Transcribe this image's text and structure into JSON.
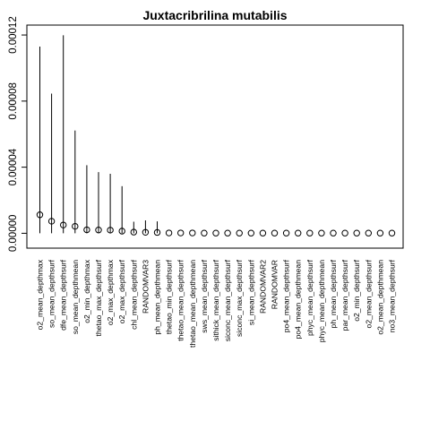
{
  "chart_data": {
    "type": "scatter",
    "title": "Juxtacribrilina mutabilis",
    "xlabel": "",
    "ylabel": "",
    "ylim": [
      -9e-06,
      0.000126
    ],
    "y_ticks": [
      0.0,
      4e-05,
      8e-05,
      0.00012
    ],
    "y_tick_labels": [
      "0.00000",
      "0.00004",
      "0.00008",
      "0.00012"
    ],
    "categories": [
      "o2_mean_depthmax",
      "so_mean_depthsurf",
      "dfe_mean_depthsurf",
      "so_mean_depthmean",
      "o2_min_depthmax",
      "thetao_max_depthsurf",
      "o2_max_depthmax",
      "o2_max_depthsurf",
      "chl_mean_depthsurf",
      "RANDOMVAR3",
      "ph_mean_depthmean",
      "thetao_min_depthsurf",
      "thetao_mean_depthsurf",
      "thetao_mean_depthmean",
      "sws_mean_depthsurf",
      "sithick_mean_depthsurf",
      "siconc_mean_depthsurf",
      "siconc_max_depthsurf",
      "si_mean_depthsurf",
      "RANDOMVAR2",
      "RANDOMVAR",
      "po4_mean_depthsurf",
      "po4_mean_depthmean",
      "phyc_mean_depthsurf",
      "phyc_mean_depthmean",
      "ph_mean_depthsurf",
      "par_mean_depthsurf",
      "o2_min_depthsurf",
      "o2_mean_depthsurf",
      "o2_mean_depthmean",
      "no3_mean_depthsurf"
    ],
    "values": [
      1.12e-05,
      7.3e-06,
      5e-06,
      4.2e-06,
      2.1e-06,
      2e-06,
      1.9e-06,
      1.3e-06,
      7e-07,
      6e-07,
      5e-07,
      2e-07,
      2e-07,
      2e-07,
      1e-07,
      1e-07,
      1e-07,
      1e-07,
      1e-07,
      1e-07,
      1e-07,
      1e-07,
      1e-07,
      1e-07,
      1e-07,
      1e-07,
      1e-07,
      1e-07,
      1e-07,
      1e-07,
      1e-07
    ],
    "upper": [
      0.000113,
      8.45e-05,
      0.0001198,
      6.22e-05,
      4.12e-05,
      3.7e-05,
      3.6e-05,
      2.85e-05,
      7e-06,
      7.8e-06,
      7.2e-06,
      2e-07,
      2e-07,
      2e-07,
      1e-07,
      1e-07,
      1e-07,
      1e-07,
      1e-07,
      1e-07,
      1e-07,
      1e-07,
      1e-07,
      1e-07,
      1e-07,
      1e-07,
      1e-07,
      1e-07,
      1e-07,
      1e-07,
      1e-07
    ],
    "lower": [
      0.0,
      0.0,
      0.0,
      0.0,
      0.0,
      0.0,
      0.0,
      0.0,
      0.0,
      0.0,
      0.0,
      0.0,
      0.0,
      0.0,
      0.0,
      0.0,
      0.0,
      0.0,
      0.0,
      0.0,
      0.0,
      0.0,
      0.0,
      0.0,
      0.0,
      0.0,
      0.0,
      0.0,
      0.0,
      0.0,
      0.0
    ],
    "marker": "open-circle",
    "grid": false,
    "legend": "none"
  }
}
